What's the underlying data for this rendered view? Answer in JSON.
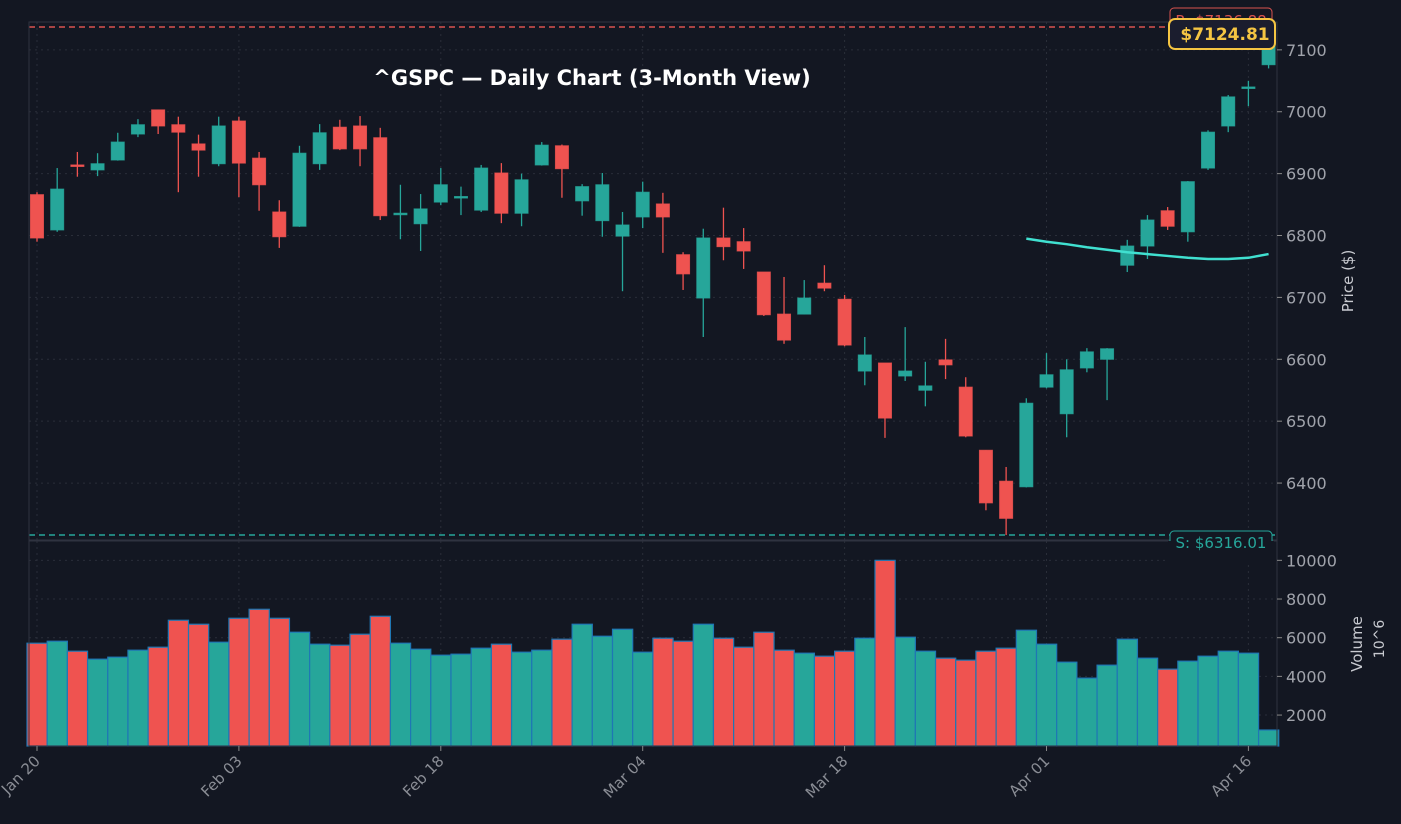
{
  "chart_data": {
    "type": "candlestick",
    "title": "^GSPC — Daily Chart (3-Month View)",
    "ylabel": "Price ($)",
    "volume_ylabel": "Volume",
    "volume_offset_label": "10^6",
    "ylim": [
      6308,
      7145
    ],
    "volume_ylim": [
      400,
      11000
    ],
    "y_ticks": [
      6400,
      6500,
      6600,
      6700,
      6800,
      6900,
      7000,
      7100
    ],
    "volume_ticks": [
      2000,
      4000,
      6000,
      8000,
      10000
    ],
    "x_ticks": [
      {
        "index": 0,
        "label": "Jan 20"
      },
      {
        "index": 10,
        "label": "Feb 03"
      },
      {
        "index": 20,
        "label": "Feb 18"
      },
      {
        "index": 30,
        "label": "Mar 04"
      },
      {
        "index": 40,
        "label": "Mar 18"
      },
      {
        "index": 50,
        "label": "Apr 01"
      },
      {
        "index": 60,
        "label": "Apr 16"
      }
    ],
    "grid": true,
    "ohlc_fields": [
      "open",
      "high",
      "low",
      "close"
    ],
    "ohlc": [
      [
        6866,
        6870,
        6790,
        6796
      ],
      [
        6809,
        6909,
        6806,
        6875
      ],
      [
        6914,
        6935,
        6895,
        6913
      ],
      [
        6906,
        6933,
        6896,
        6916
      ],
      [
        6922,
        6966,
        6921,
        6951
      ],
      [
        6964,
        6988,
        6959,
        6979
      ],
      [
        7003,
        7003,
        6964,
        6977
      ],
      [
        6979,
        6992,
        6870,
        6967
      ],
      [
        6948,
        6963,
        6895,
        6938
      ],
      [
        6916,
        6992,
        6912,
        6977
      ],
      [
        6985,
        6992,
        6862,
        6917
      ],
      [
        6925,
        6935,
        6840,
        6882
      ],
      [
        6838,
        6857,
        6780,
        6798
      ],
      [
        6815,
        6945,
        6814,
        6933
      ],
      [
        6916,
        6980,
        6906,
        6966
      ],
      [
        6975,
        6987,
        6938,
        6940
      ],
      [
        6977,
        6993,
        6912,
        6940
      ],
      [
        6958,
        6974,
        6825,
        6832
      ],
      [
        6834,
        6882,
        6794,
        6836
      ],
      [
        6819,
        6867,
        6775,
        6843
      ],
      [
        6854,
        6909,
        6849,
        6882
      ],
      [
        6861,
        6879,
        6833,
        6863
      ],
      [
        6841,
        6914,
        6838,
        6909
      ],
      [
        6901,
        6917,
        6820,
        6836
      ],
      [
        6836,
        6900,
        6815,
        6890
      ],
      [
        6914,
        6951,
        6913,
        6946
      ],
      [
        6945,
        6947,
        6861,
        6908
      ],
      [
        6856,
        6883,
        6832,
        6879
      ],
      [
        6824,
        6901,
        6798,
        6882
      ],
      [
        6799,
        6838,
        6710,
        6817
      ],
      [
        6830,
        6887,
        6812,
        6870
      ],
      [
        6851,
        6869,
        6772,
        6830
      ],
      [
        6769,
        6773,
        6712,
        6738
      ],
      [
        6699,
        6811,
        6636,
        6796
      ],
      [
        6796,
        6845,
        6760,
        6782
      ],
      [
        6790,
        6812,
        6746,
        6775
      ],
      [
        6741,
        6741,
        6670,
        6672
      ],
      [
        6673,
        6733,
        6625,
        6631
      ],
      [
        6673,
        6728,
        6673,
        6699
      ],
      [
        6723,
        6752,
        6710,
        6715
      ],
      [
        6697,
        6704,
        6621,
        6623
      ],
      [
        6581,
        6636,
        6558,
        6607
      ],
      [
        6594,
        6594,
        6473,
        6505
      ],
      [
        6573,
        6652,
        6565,
        6581
      ],
      [
        6550,
        6596,
        6524,
        6557
      ],
      [
        6599,
        6633,
        6568,
        6591
      ],
      [
        6555,
        6571,
        6474,
        6476
      ],
      [
        6453,
        6453,
        6356,
        6368
      ],
      [
        6403,
        6426,
        6316,
        6343
      ],
      [
        6394,
        6537,
        6393,
        6529
      ],
      [
        6555,
        6610,
        6553,
        6575
      ],
      [
        6512,
        6600,
        6474,
        6583
      ],
      [
        6586,
        6618,
        6579,
        6612
      ],
      [
        6600,
        6618,
        6534,
        6617
      ],
      [
        6752,
        6793,
        6741,
        6783
      ],
      [
        6783,
        6833,
        6762,
        6825
      ],
      [
        6840,
        6846,
        6809,
        6815
      ],
      [
        6806,
        6888,
        6790,
        6887
      ],
      [
        6909,
        6970,
        6906,
        6967
      ],
      [
        6977,
        7027,
        6967,
        7024
      ],
      [
        7039,
        7050,
        7009,
        7040
      ],
      [
        7076,
        7136.88,
        7070,
        7124.81
      ]
    ],
    "volume": [
      5715,
      5818,
      5302,
      4890,
      4993,
      5354,
      5509,
      6902,
      6696,
      5767,
      7005,
      7470,
      7005,
      6283,
      5664,
      5612,
      6180,
      7108,
      5715,
      5406,
      5096,
      5148,
      5457,
      5664,
      5251,
      5354,
      5922,
      6696,
      6076,
      6438,
      5251,
      5973,
      5818,
      6696,
      5973,
      5509,
      6283,
      5354,
      5199,
      5044,
      5302,
      5973,
      10000,
      6025,
      5302,
      4941,
      4838,
      5302,
      5457,
      6386,
      5664,
      4735,
      3909,
      4580,
      5922,
      4941,
      4374,
      4786,
      5044,
      5302,
      5199,
      1226
    ],
    "moving_average": {
      "start_index": 49,
      "values": [
        6795,
        6790,
        6786,
        6781,
        6777,
        6773,
        6770,
        6767,
        6764,
        6762,
        6762,
        6764,
        6770
      ]
    },
    "resistance": {
      "value": 7136.88,
      "label": "R: $7136.88"
    },
    "support": {
      "value": 6316.01,
      "label": "S: $6316.01"
    },
    "last_price": {
      "value": 7124.81,
      "label": "$7124.81"
    },
    "colors": {
      "background": "#131722",
      "up": "#26a69a",
      "down": "#ef5350",
      "moving_average": "#40e0d0",
      "volume_edge": "#1f77b4",
      "last_price": "#f5c542",
      "grid": "#2a2e39"
    }
  }
}
